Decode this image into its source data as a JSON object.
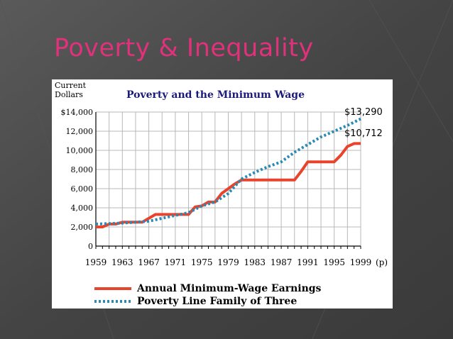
{
  "slide": {
    "title": "Poverty & Inequality",
    "colors": {
      "title": "#e0317a",
      "background": "#4a4a4a"
    }
  },
  "chart_data": {
    "type": "line",
    "title": "Poverty and the Minimum Wage",
    "ylabel_line1": "Current",
    "ylabel_line2": "Dollars",
    "xlabel": "",
    "x_suffix": "(p)",
    "xlim": [
      1959,
      1999
    ],
    "ylim": [
      0,
      14000
    ],
    "grid": true,
    "legend_position": "bottom",
    "y_ticks": [
      0,
      2000,
      4000,
      6000,
      8000,
      10000,
      12000,
      14000
    ],
    "y_tick_labels": [
      "0",
      "2,000",
      "4,000",
      "6,000",
      "8,000",
      "10,000",
      "12,000",
      "$14,000"
    ],
    "x_ticks": [
      1959,
      1963,
      1967,
      1971,
      1975,
      1979,
      1983,
      1987,
      1991,
      1995,
      1999
    ],
    "x_tick_labels": [
      "1959",
      "1963",
      "1967",
      "1971",
      "1975",
      "1979",
      "1983",
      "1987",
      "1991",
      "1995",
      "1999"
    ],
    "series": [
      {
        "name": "Annual Minimum-Wage Earnings",
        "color": "#e8432c",
        "style": "solid",
        "end_label": "$10,712",
        "x": [
          1959,
          1960,
          1961,
          1962,
          1963,
          1964,
          1965,
          1966,
          1967,
          1968,
          1969,
          1970,
          1971,
          1972,
          1973,
          1974,
          1975,
          1976,
          1977,
          1978,
          1979,
          1980,
          1981,
          1982,
          1983,
          1984,
          1985,
          1986,
          1987,
          1988,
          1989,
          1990,
          1991,
          1992,
          1993,
          1994,
          1995,
          1996,
          1997,
          1998,
          1999
        ],
        "values": [
          2000,
          2000,
          2300,
          2300,
          2500,
          2500,
          2500,
          2500,
          2900,
          3300,
          3300,
          3300,
          3300,
          3300,
          3300,
          4100,
          4200,
          4600,
          4600,
          5500,
          6000,
          6500,
          6900,
          6900,
          6900,
          6900,
          6900,
          6900,
          6900,
          6900,
          6900,
          7800,
          8800,
          8800,
          8800,
          8800,
          8800,
          9500,
          10400,
          10712,
          10712
        ]
      },
      {
        "name": "Poverty Line Family of Three",
        "color": "#2a8ab5",
        "style": "dotted",
        "end_label": "$13,290",
        "x": [
          1959,
          1961,
          1963,
          1965,
          1967,
          1969,
          1971,
          1973,
          1975,
          1977,
          1979,
          1981,
          1983,
          1985,
          1987,
          1989,
          1991,
          1993,
          1995,
          1997,
          1999
        ],
        "values": [
          2300,
          2350,
          2400,
          2500,
          2600,
          2900,
          3200,
          3500,
          4200,
          4600,
          5500,
          7000,
          7700,
          8300,
          8800,
          9800,
          10600,
          11400,
          12000,
          12600,
          13290
        ]
      }
    ]
  }
}
